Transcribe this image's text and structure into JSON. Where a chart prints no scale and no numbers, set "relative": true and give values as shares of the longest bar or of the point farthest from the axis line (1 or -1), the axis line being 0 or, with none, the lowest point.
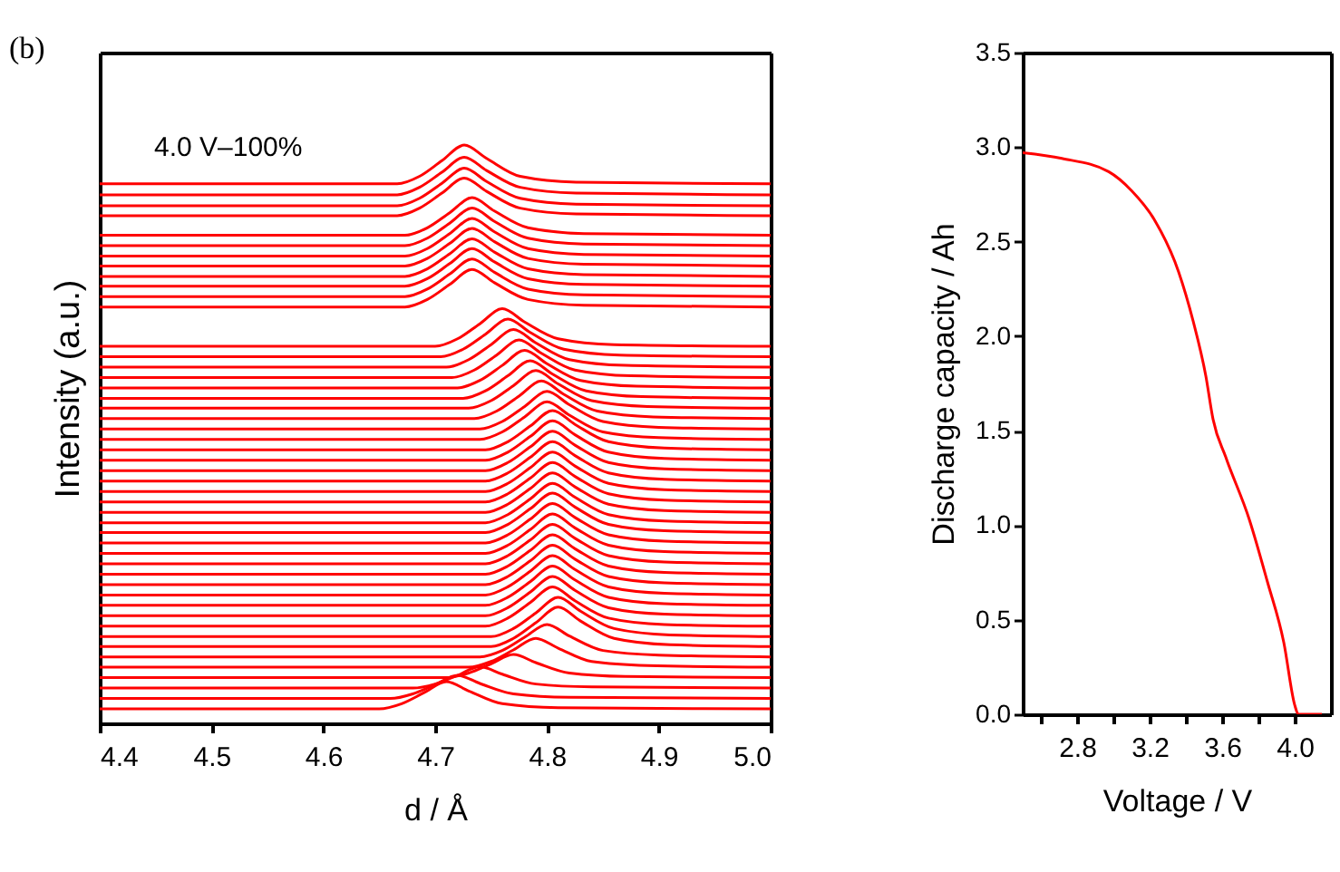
{
  "chart_data": [
    {
      "type": "line",
      "relative": true,
      "xlabel": "d / Å",
      "ylabel": "Intensity (a.u.)",
      "annotations": [
        "(b)",
        "4.0 V–100%"
      ],
      "xlim": [
        4.4,
        5.0
      ],
      "xticks": [
        {
          "value": 4.4,
          "label": "4.4"
        },
        {
          "value": 4.5,
          "label": "4.5"
        },
        {
          "value": 4.6,
          "label": "4.6"
        },
        {
          "value": 4.7,
          "label": "4.7"
        },
        {
          "value": 4.8,
          "label": "4.8"
        },
        {
          "value": 4.9,
          "label": "4.9"
        },
        {
          "value": 5.0,
          "label": "5.0"
        }
      ],
      "tick_labels": "x",
      "color": "#ff0000",
      "series": [
        {
          "x": [
            4.4,
            4.6,
            4.666,
            4.686,
            4.706,
            4.726,
            4.746,
            4.776,
            4.826,
            5.0
          ],
          "values": [
            0.933,
            0.933,
            0.933,
            0.946,
            0.973,
            1.0,
            0.977,
            0.946,
            0.936,
            0.933
          ]
        },
        {
          "x": [
            4.4,
            4.6,
            4.666,
            4.686,
            4.706,
            4.726,
            4.746,
            4.776,
            4.826,
            5.0
          ],
          "values": [
            0.914,
            0.914,
            0.914,
            0.927,
            0.953,
            0.979,
            0.956,
            0.927,
            0.917,
            0.914
          ]
        },
        {
          "x": [
            4.4,
            4.6,
            4.666,
            4.686,
            4.706,
            4.726,
            4.746,
            4.776,
            4.826,
            5.0
          ],
          "values": [
            0.895,
            0.895,
            0.895,
            0.908,
            0.934,
            0.96,
            0.937,
            0.908,
            0.898,
            0.895
          ]
        },
        {
          "x": [
            4.4,
            4.6,
            4.666,
            4.686,
            4.706,
            4.726,
            4.746,
            4.776,
            4.826,
            5.0
          ],
          "values": [
            0.878,
            0.878,
            0.878,
            0.891,
            0.917,
            0.943,
            0.92,
            0.891,
            0.881,
            0.878
          ]
        },
        {
          "x": [
            4.4,
            4.6,
            4.673,
            4.693,
            4.713,
            4.733,
            4.753,
            4.783,
            4.833,
            5.0
          ],
          "values": [
            0.844,
            0.844,
            0.844,
            0.857,
            0.883,
            0.909,
            0.886,
            0.857,
            0.847,
            0.844
          ]
        },
        {
          "x": [
            4.4,
            4.6,
            4.673,
            4.693,
            4.713,
            4.733,
            4.753,
            4.783,
            4.833,
            5.0
          ],
          "values": [
            0.826,
            0.826,
            0.826,
            0.839,
            0.865,
            0.891,
            0.868,
            0.839,
            0.829,
            0.826
          ]
        },
        {
          "x": [
            4.4,
            4.6,
            4.673,
            4.693,
            4.713,
            4.733,
            4.753,
            4.783,
            4.833,
            5.0
          ],
          "values": [
            0.808,
            0.808,
            0.808,
            0.821,
            0.847,
            0.873,
            0.85,
            0.821,
            0.811,
            0.808
          ]
        },
        {
          "x": [
            4.4,
            4.6,
            4.673,
            4.693,
            4.713,
            4.733,
            4.753,
            4.783,
            4.833,
            5.0
          ],
          "values": [
            0.791,
            0.791,
            0.791,
            0.804,
            0.83,
            0.856,
            0.833,
            0.804,
            0.794,
            0.791
          ]
        },
        {
          "x": [
            4.4,
            4.6,
            4.673,
            4.693,
            4.713,
            4.733,
            4.753,
            4.783,
            4.833,
            5.0
          ],
          "values": [
            0.773,
            0.773,
            0.773,
            0.786,
            0.812,
            0.838,
            0.815,
            0.786,
            0.776,
            0.773
          ]
        },
        {
          "x": [
            4.4,
            4.6,
            4.673,
            4.693,
            4.713,
            4.733,
            4.753,
            4.783,
            4.833,
            5.0
          ],
          "values": [
            0.756,
            0.756,
            0.756,
            0.769,
            0.795,
            0.821,
            0.798,
            0.769,
            0.759,
            0.756
          ]
        },
        {
          "x": [
            4.4,
            4.6,
            4.673,
            4.693,
            4.713,
            4.733,
            4.753,
            4.783,
            4.833,
            5.0
          ],
          "values": [
            0.738,
            0.738,
            0.738,
            0.751,
            0.777,
            0.803,
            0.78,
            0.751,
            0.741,
            0.738
          ]
        },
        {
          "x": [
            4.4,
            4.6,
            4.673,
            4.693,
            4.713,
            4.733,
            4.753,
            4.783,
            4.833,
            5.0
          ],
          "values": [
            0.72,
            0.72,
            0.72,
            0.733,
            0.759,
            0.785,
            0.762,
            0.733,
            0.723,
            0.72
          ]
        },
        {
          "x": [
            4.4,
            4.6,
            4.7,
            4.72,
            4.74,
            4.76,
            4.78,
            4.81,
            4.86,
            5.0
          ],
          "values": [
            0.652,
            0.652,
            0.652,
            0.665,
            0.691,
            0.717,
            0.694,
            0.665,
            0.655,
            0.652
          ]
        },
        {
          "x": [
            4.4,
            4.6,
            4.705,
            4.725,
            4.745,
            4.765,
            4.785,
            4.815,
            4.865,
            5.0
          ],
          "values": [
            0.634,
            0.634,
            0.634,
            0.647,
            0.673,
            0.699,
            0.676,
            0.647,
            0.637,
            0.634
          ]
        },
        {
          "x": [
            4.4,
            4.6,
            4.71,
            4.73,
            4.75,
            4.77,
            4.79,
            4.82,
            4.87,
            5.0
          ],
          "values": [
            0.616,
            0.616,
            0.616,
            0.629,
            0.655,
            0.681,
            0.658,
            0.629,
            0.619,
            0.616
          ]
        },
        {
          "x": [
            4.4,
            4.6,
            4.715,
            4.735,
            4.755,
            4.775,
            4.795,
            4.825,
            4.875,
            5.0
          ],
          "values": [
            0.598,
            0.598,
            0.598,
            0.611,
            0.637,
            0.663,
            0.64,
            0.611,
            0.601,
            0.598
          ]
        },
        {
          "x": [
            4.4,
            4.6,
            4.72,
            4.74,
            4.76,
            4.78,
            4.8,
            4.83,
            4.88,
            5.0
          ],
          "values": [
            0.58,
            0.58,
            0.58,
            0.593,
            0.619,
            0.645,
            0.622,
            0.593,
            0.583,
            0.58
          ]
        },
        {
          "x": [
            4.4,
            4.6,
            4.725,
            4.745,
            4.765,
            4.785,
            4.805,
            4.835,
            4.885,
            5.0
          ],
          "values": [
            0.562,
            0.562,
            0.562,
            0.575,
            0.601,
            0.627,
            0.604,
            0.575,
            0.565,
            0.562
          ]
        },
        {
          "x": [
            4.4,
            4.6,
            4.73,
            4.75,
            4.77,
            4.79,
            4.81,
            4.84,
            4.89,
            5.0
          ],
          "values": [
            0.545,
            0.545,
            0.545,
            0.558,
            0.584,
            0.61,
            0.587,
            0.558,
            0.548,
            0.545
          ]
        },
        {
          "x": [
            4.4,
            4.6,
            4.735,
            4.755,
            4.775,
            4.795,
            4.815,
            4.845,
            4.895,
            5.0
          ],
          "values": [
            0.527,
            0.527,
            0.527,
            0.54,
            0.566,
            0.592,
            0.569,
            0.54,
            0.53,
            0.527
          ]
        },
        {
          "x": [
            4.4,
            4.6,
            4.74,
            4.76,
            4.78,
            4.8,
            4.82,
            4.85,
            4.9,
            5.0
          ],
          "values": [
            0.509,
            0.509,
            0.509,
            0.522,
            0.548,
            0.574,
            0.551,
            0.522,
            0.512,
            0.509
          ]
        },
        {
          "x": [
            4.4,
            4.6,
            4.74,
            4.76,
            4.78,
            4.8,
            4.82,
            4.85,
            4.9,
            5.0
          ],
          "values": [
            0.491,
            0.491,
            0.491,
            0.504,
            0.53,
            0.556,
            0.533,
            0.504,
            0.494,
            0.491
          ]
        },
        {
          "x": [
            4.4,
            4.6,
            4.745,
            4.765,
            4.785,
            4.805,
            4.825,
            4.855,
            4.905,
            5.0
          ],
          "values": [
            0.473,
            0.473,
            0.473,
            0.487,
            0.514,
            0.541,
            0.517,
            0.487,
            0.476,
            0.473
          ]
        },
        {
          "x": [
            4.4,
            4.6,
            4.745,
            4.765,
            4.785,
            4.805,
            4.825,
            4.855,
            4.905,
            5.0
          ],
          "values": [
            0.455,
            0.455,
            0.455,
            0.469,
            0.496,
            0.523,
            0.499,
            0.469,
            0.458,
            0.455
          ]
        },
        {
          "x": [
            4.4,
            4.6,
            4.745,
            4.765,
            4.785,
            4.805,
            4.825,
            4.855,
            4.905,
            5.0
          ],
          "values": [
            0.437,
            0.437,
            0.437,
            0.451,
            0.478,
            0.505,
            0.481,
            0.451,
            0.44,
            0.437
          ]
        },
        {
          "x": [
            4.4,
            4.6,
            4.745,
            4.765,
            4.785,
            4.805,
            4.825,
            4.855,
            4.905,
            5.0
          ],
          "values": [
            0.419,
            0.419,
            0.419,
            0.433,
            0.46,
            0.487,
            0.463,
            0.433,
            0.422,
            0.419
          ]
        },
        {
          "x": [
            4.4,
            4.6,
            4.745,
            4.765,
            4.785,
            4.805,
            4.825,
            4.855,
            4.905,
            5.0
          ],
          "values": [
            0.401,
            0.401,
            0.401,
            0.415,
            0.442,
            0.469,
            0.445,
            0.415,
            0.404,
            0.401
          ]
        },
        {
          "x": [
            4.4,
            4.6,
            4.745,
            4.765,
            4.785,
            4.805,
            4.825,
            4.855,
            4.905,
            5.0
          ],
          "values": [
            0.383,
            0.383,
            0.383,
            0.397,
            0.424,
            0.451,
            0.427,
            0.397,
            0.386,
            0.383
          ]
        },
        {
          "x": [
            4.4,
            4.6,
            4.745,
            4.765,
            4.785,
            4.805,
            4.825,
            4.855,
            4.905,
            5.0
          ],
          "values": [
            0.365,
            0.365,
            0.365,
            0.379,
            0.406,
            0.433,
            0.409,
            0.379,
            0.368,
            0.365
          ]
        },
        {
          "x": [
            4.4,
            4.6,
            4.745,
            4.765,
            4.785,
            4.805,
            4.825,
            4.855,
            4.905,
            5.0
          ],
          "values": [
            0.347,
            0.347,
            0.347,
            0.361,
            0.388,
            0.415,
            0.391,
            0.361,
            0.35,
            0.347
          ]
        },
        {
          "x": [
            4.4,
            4.6,
            4.745,
            4.765,
            4.785,
            4.805,
            4.825,
            4.855,
            4.905,
            5.0
          ],
          "values": [
            0.33,
            0.33,
            0.33,
            0.344,
            0.371,
            0.398,
            0.374,
            0.344,
            0.333,
            0.33
          ]
        },
        {
          "x": [
            4.4,
            4.6,
            4.745,
            4.765,
            4.785,
            4.805,
            4.825,
            4.855,
            4.905,
            5.0
          ],
          "values": [
            0.312,
            0.312,
            0.312,
            0.326,
            0.353,
            0.38,
            0.356,
            0.326,
            0.315,
            0.312
          ]
        },
        {
          "x": [
            4.4,
            4.6,
            4.745,
            4.765,
            4.785,
            4.805,
            4.825,
            4.855,
            4.905,
            5.0
          ],
          "values": [
            0.294,
            0.294,
            0.294,
            0.308,
            0.335,
            0.362,
            0.338,
            0.308,
            0.297,
            0.294
          ]
        },
        {
          "x": [
            4.4,
            4.6,
            4.745,
            4.765,
            4.785,
            4.805,
            4.825,
            4.855,
            4.905,
            5.0
          ],
          "values": [
            0.276,
            0.276,
            0.276,
            0.29,
            0.317,
            0.344,
            0.32,
            0.29,
            0.279,
            0.276
          ]
        },
        {
          "x": [
            4.4,
            4.6,
            4.745,
            4.765,
            4.785,
            4.805,
            4.825,
            4.855,
            4.905,
            5.0
          ],
          "values": [
            0.258,
            0.258,
            0.258,
            0.272,
            0.299,
            0.326,
            0.302,
            0.272,
            0.261,
            0.258
          ]
        },
        {
          "x": [
            4.4,
            4.6,
            4.745,
            4.765,
            4.785,
            4.805,
            4.825,
            4.855,
            4.905,
            5.0
          ],
          "values": [
            0.24,
            0.24,
            0.24,
            0.254,
            0.281,
            0.308,
            0.284,
            0.254,
            0.243,
            0.24
          ]
        },
        {
          "x": [
            4.4,
            4.6,
            4.745,
            4.765,
            4.785,
            4.805,
            4.825,
            4.855,
            4.905,
            5.0
          ],
          "values": [
            0.222,
            0.222,
            0.222,
            0.236,
            0.263,
            0.29,
            0.266,
            0.236,
            0.225,
            0.222
          ]
        },
        {
          "x": [
            4.4,
            4.6,
            4.745,
            4.765,
            4.785,
            4.805,
            4.825,
            4.855,
            4.905,
            5.0
          ],
          "values": [
            0.204,
            0.204,
            0.204,
            0.218,
            0.245,
            0.272,
            0.248,
            0.218,
            0.207,
            0.204
          ]
        },
        {
          "x": [
            4.4,
            4.6,
            4.745,
            4.765,
            4.785,
            4.805,
            4.825,
            4.855,
            4.905,
            5.0
          ],
          "values": [
            0.186,
            0.186,
            0.186,
            0.2,
            0.227,
            0.254,
            0.23,
            0.2,
            0.189,
            0.186
          ]
        },
        {
          "x": [
            4.4,
            4.6,
            4.745,
            4.765,
            4.785,
            4.805,
            4.825,
            4.855,
            4.905,
            5.0
          ],
          "values": [
            0.168,
            0.168,
            0.168,
            0.182,
            0.209,
            0.236,
            0.212,
            0.182,
            0.171,
            0.168
          ]
        },
        {
          "x": [
            4.4,
            4.6,
            4.75,
            4.77,
            4.79,
            4.81,
            4.83,
            4.86,
            4.91,
            5.0
          ],
          "values": [
            0.15,
            0.15,
            0.15,
            0.164,
            0.191,
            0.218,
            0.194,
            0.164,
            0.153,
            0.15
          ]
        },
        {
          "x": [
            4.4,
            4.6,
            4.75,
            4.77,
            4.79,
            4.81,
            4.83,
            4.86,
            4.91,
            5.0
          ],
          "values": [
            0.133,
            0.133,
            0.133,
            0.147,
            0.174,
            0.201,
            0.177,
            0.147,
            0.136,
            0.133
          ]
        },
        {
          "x": [
            4.4,
            4.6,
            4.74,
            4.76,
            4.78,
            4.8,
            4.82,
            4.85,
            4.9,
            5.0
          ],
          "values": [
            0.115,
            0.115,
            0.115,
            0.126,
            0.149,
            0.171,
            0.151,
            0.126,
            0.118,
            0.115
          ]
        },
        {
          "x": [
            4.4,
            4.6,
            4.73,
            4.75,
            4.77,
            4.79,
            4.81,
            4.84,
            4.89,
            5.0
          ],
          "values": [
            0.097,
            0.097,
            0.097,
            0.107,
            0.127,
            0.147,
            0.13,
            0.107,
            0.1,
            0.097
          ]
        },
        {
          "x": [
            4.4,
            4.6,
            4.71,
            4.73,
            4.75,
            4.77,
            4.79,
            4.82,
            4.87,
            5.0
          ],
          "values": [
            0.079,
            0.079,
            0.079,
            0.087,
            0.103,
            0.119,
            0.105,
            0.087,
            0.081,
            0.079
          ]
        },
        {
          "x": [
            4.4,
            4.6,
            4.68,
            4.7,
            4.72,
            4.74,
            4.76,
            4.79,
            4.84,
            5.0
          ],
          "values": [
            0.061,
            0.061,
            0.061,
            0.068,
            0.083,
            0.098,
            0.085,
            0.068,
            0.063,
            0.061
          ]
        },
        {
          "x": [
            4.4,
            4.6,
            4.66,
            4.68,
            4.7,
            4.72,
            4.74,
            4.77,
            4.82,
            5.0
          ],
          "values": [
            0.043,
            0.043,
            0.043,
            0.051,
            0.067,
            0.083,
            0.069,
            0.051,
            0.045,
            0.043
          ]
        },
        {
          "x": [
            4.4,
            4.6,
            4.65,
            4.67,
            4.69,
            4.71,
            4.73,
            4.76,
            4.81,
            5.0
          ],
          "values": [
            0.025,
            0.025,
            0.025,
            0.034,
            0.053,
            0.072,
            0.056,
            0.034,
            0.027,
            0.025
          ]
        }
      ]
    },
    {
      "type": "line",
      "xlabel": "Voltage / V",
      "ylabel": "Discharge capacity / Ah",
      "xlim": [
        2.5,
        4.2
      ],
      "xticks": [
        {
          "value": 2.6,
          "label": null
        },
        2.8,
        {
          "value": 3.0,
          "label": null
        },
        3.2,
        {
          "value": 3.4,
          "label": null
        },
        3.6,
        {
          "value": 3.8,
          "label": null
        },
        {
          "value": 4.0,
          "label": "4.0"
        }
      ],
      "ylim": [
        0,
        3.5
      ],
      "yticks": [
        {
          "value": 0,
          "label": "0.0"
        },
        0.5,
        {
          "value": 1,
          "label": "1.0"
        },
        1.5,
        {
          "value": 2,
          "label": "2.0"
        },
        2.5,
        {
          "value": 3,
          "label": "3.0"
        },
        3.5
      ],
      "series": [
        {
          "color": "#ff0000",
          "x": [
            2.5,
            2.716,
            2.974,
            3.1,
            3.23,
            3.36,
            3.44,
            3.51,
            3.55,
            3.62,
            3.75,
            3.85,
            3.94,
            4.0,
            4.02,
            4.15
          ],
          "values": [
            2.97,
            2.94,
            2.87,
            2.77,
            2.61,
            2.34,
            2.08,
            1.79,
            1.56,
            1.36,
            1.03,
            0.7,
            0.38,
            0.05,
            0,
            0
          ]
        }
      ]
    }
  ]
}
